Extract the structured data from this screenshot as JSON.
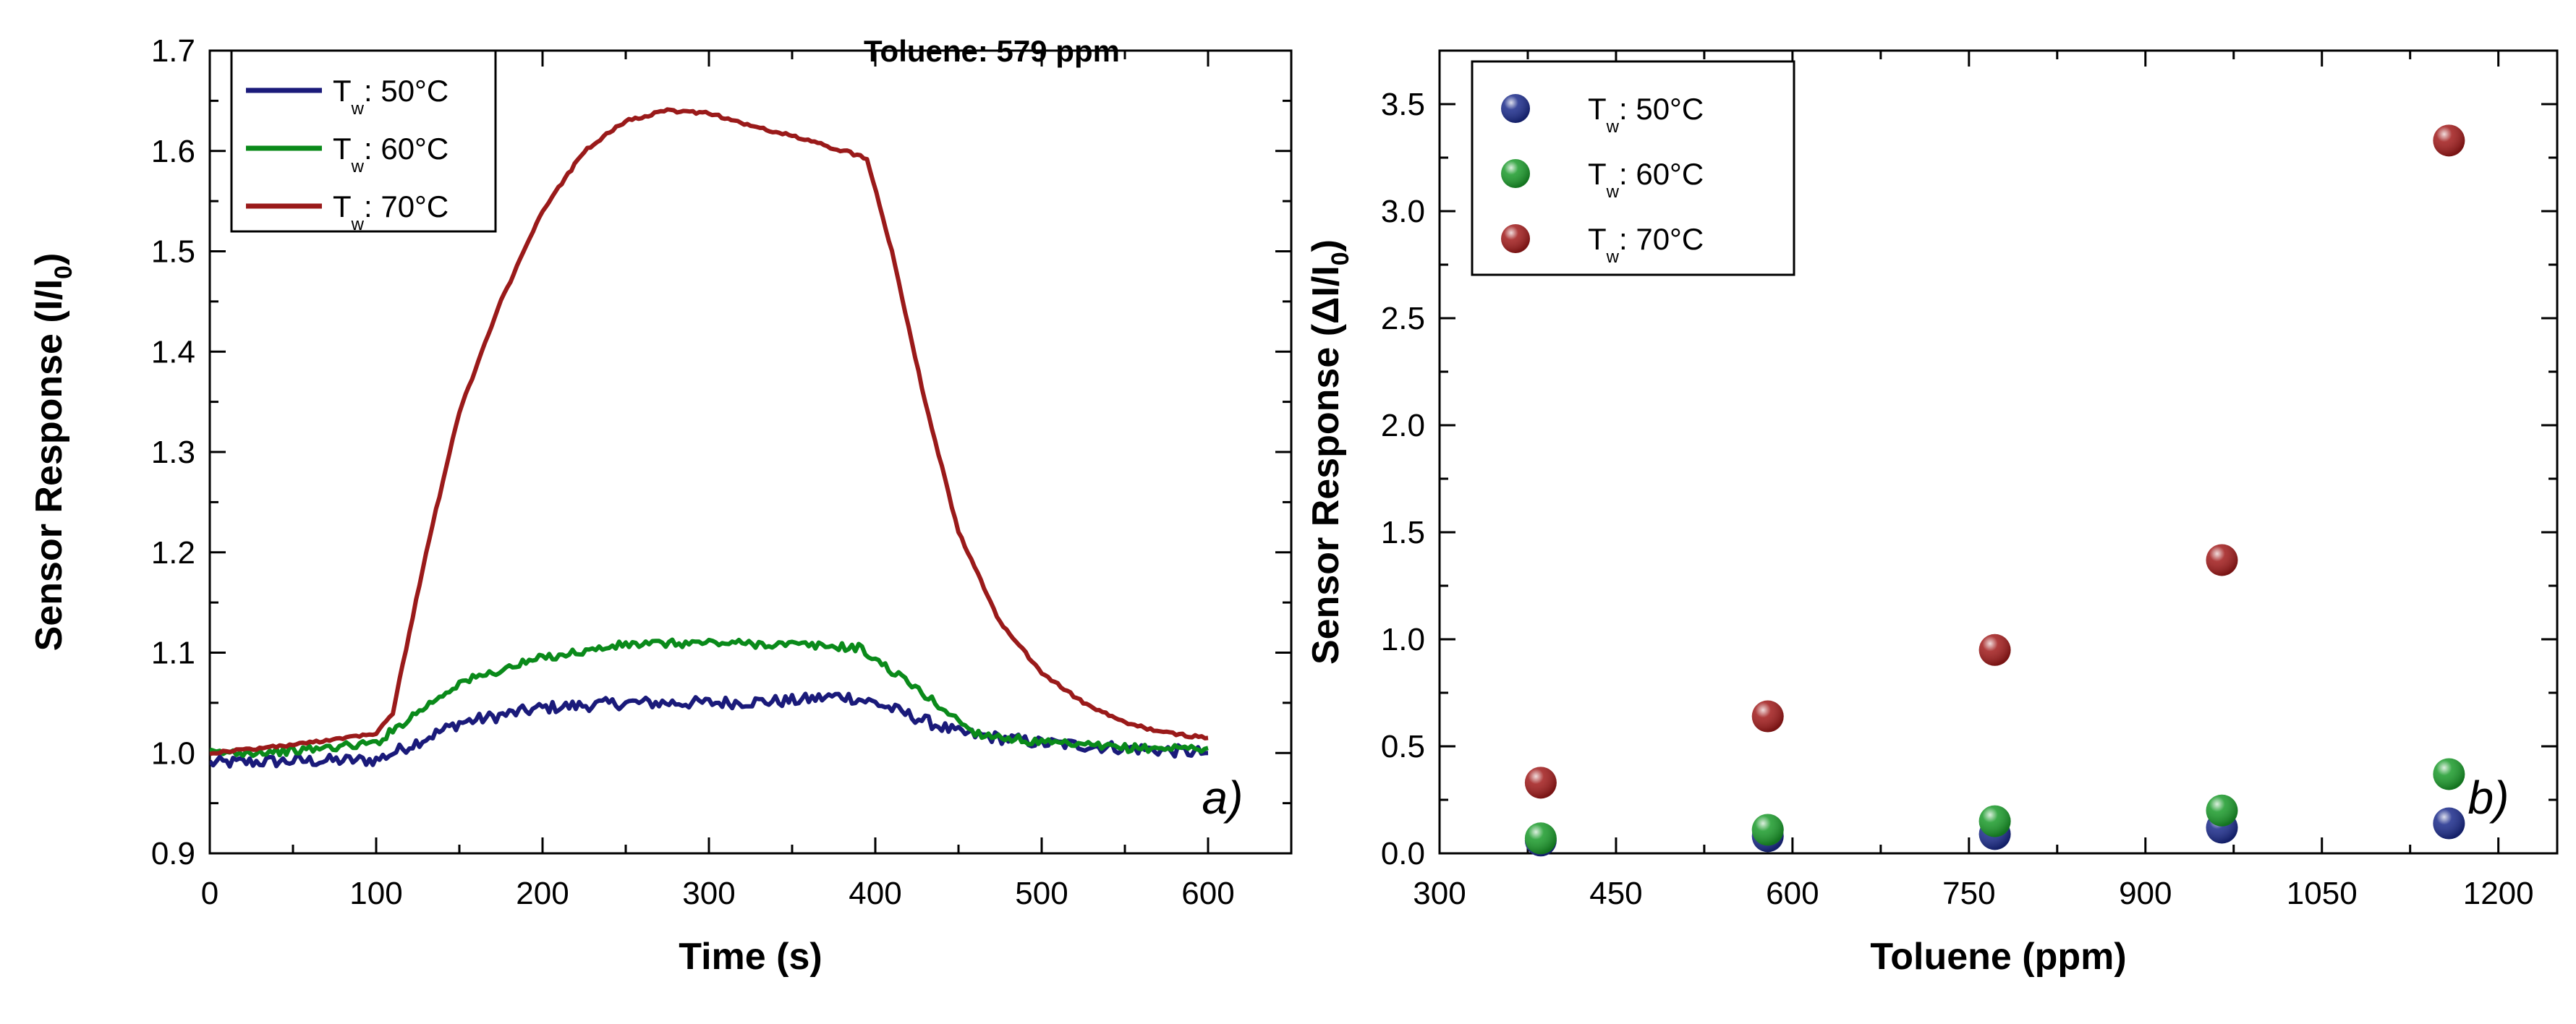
{
  "chart_data": [
    {
      "type": "line",
      "panel_label": "a)",
      "annotation": "Toluene: 579 ppm",
      "xlabel": "Time (s)",
      "ylabel": "Sensor Response (I/I0)",
      "ylabel_main": "Sensor Response (I/I",
      "ylabel_sub": "0",
      "ylabel_close": ")",
      "xlim": [
        0,
        650
      ],
      "ylim": [
        0.9,
        1.7
      ],
      "xticks": [
        0,
        100,
        200,
        300,
        400,
        500,
        600
      ],
      "yticks": [
        0.9,
        1.0,
        1.1,
        1.2,
        1.3,
        1.4,
        1.5,
        1.6,
        1.7
      ],
      "legend_placement": "top-left",
      "series": [
        {
          "name": "Tw: 50°C",
          "legend_main": "T",
          "legend_sub": "w",
          "legend_rest": ": 50°C",
          "color": "#1a1a7a",
          "noise": 0.006,
          "x": [
            0,
            50,
            100,
            110,
            150,
            200,
            250,
            300,
            350,
            380,
            400,
            450,
            500,
            550,
            600
          ],
          "y": [
            0.99,
            0.992,
            0.993,
            1.0,
            1.03,
            1.045,
            1.05,
            1.05,
            1.052,
            1.057,
            1.05,
            1.02,
            1.01,
            1.005,
            1.0
          ]
        },
        {
          "name": "Tw: 60°C",
          "legend_main": "T",
          "legend_sub": "w",
          "legend_rest": ": 60°C",
          "color": "#0a8a1a",
          "noise": 0.004,
          "x": [
            0,
            50,
            100,
            120,
            150,
            200,
            250,
            300,
            350,
            390,
            420,
            460,
            500,
            550,
            600
          ],
          "y": [
            1.0,
            1.002,
            1.01,
            1.035,
            1.07,
            1.095,
            1.108,
            1.11,
            1.108,
            1.105,
            1.07,
            1.02,
            1.01,
            1.005,
            1.005
          ]
        },
        {
          "name": "Tw: 70°C",
          "legend_main": "T",
          "legend_sub": "w",
          "legend_rest": ": 70°C",
          "color": "#9a1a1a",
          "noise": 0.0015,
          "x": [
            0,
            50,
            100,
            110,
            130,
            150,
            175,
            200,
            225,
            250,
            275,
            300,
            325,
            350,
            375,
            395,
            410,
            430,
            450,
            475,
            500,
            525,
            550,
            575,
            600
          ],
          "y": [
            1.0,
            1.008,
            1.02,
            1.04,
            1.2,
            1.34,
            1.45,
            1.54,
            1.6,
            1.63,
            1.64,
            1.638,
            1.625,
            1.615,
            1.603,
            1.593,
            1.5,
            1.35,
            1.22,
            1.13,
            1.08,
            1.05,
            1.03,
            1.02,
            1.015
          ]
        }
      ]
    },
    {
      "type": "scatter",
      "panel_label": "b)",
      "xlabel": "Toluene (ppm)",
      "ylabel": "Sensor Response (ΔI/I0)",
      "ylabel_main": "Sensor Response (ΔI/I",
      "ylabel_sub": "0",
      "ylabel_close": ")",
      "xlim": [
        300,
        1250
      ],
      "ylim": [
        0.0,
        3.75
      ],
      "xticks": [
        300,
        450,
        600,
        750,
        900,
        1050,
        1200
      ],
      "yticks": [
        0.0,
        0.5,
        1.0,
        1.5,
        2.0,
        2.5,
        3.0,
        3.5
      ],
      "legend_placement": "top-left",
      "series": [
        {
          "name": "Tw: 50°C",
          "legend_main": "T",
          "legend_sub": "w",
          "legend_rest": ": 50°C",
          "color": "#1a2a8a",
          "x": [
            386,
            579,
            772,
            965,
            1158
          ],
          "y": [
            0.06,
            0.08,
            0.09,
            0.12,
            0.14
          ]
        },
        {
          "name": "Tw: 60°C",
          "legend_main": "T",
          "legend_sub": "w",
          "legend_rest": ": 60°C",
          "color": "#1a9a2a",
          "x": [
            386,
            579,
            772,
            965,
            1158
          ],
          "y": [
            0.07,
            0.11,
            0.15,
            0.2,
            0.37
          ]
        },
        {
          "name": "Tw: 70°C",
          "legend_main": "T",
          "legend_sub": "w",
          "legend_rest": ": 70°C",
          "color": "#a01a1a",
          "x": [
            386,
            579,
            772,
            965,
            1158
          ],
          "y": [
            0.33,
            0.64,
            0.95,
            1.37,
            3.33
          ]
        }
      ]
    }
  ]
}
